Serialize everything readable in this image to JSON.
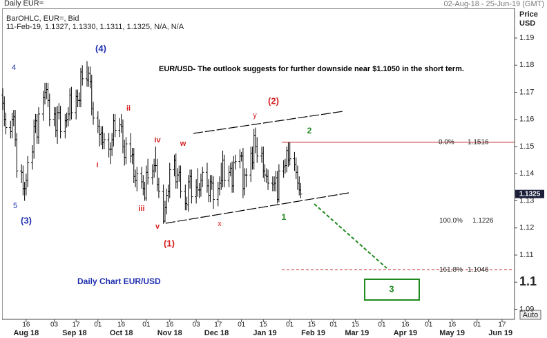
{
  "chart_data": {
    "type": "ohlc",
    "title": "Daily EUR=",
    "date_range": "02-Aug-18 - 25-Jun-19 (GMT)",
    "subtitle": "BarOHLC, EUR=, Bid",
    "info_line": "11-Feb-19, 1.1327, 1.1330, 1.1311, 1.1325, N/A, N/A",
    "ylabel_lines": [
      "Price",
      "USD"
    ],
    "auto_button": "Auto",
    "color": "#000000",
    "xlim": [
      "2018-08-01",
      "2019-06-25"
    ],
    "ylim": [
      1.0863,
      1.2002
    ],
    "yticks": [
      1.19,
      1.18,
      1.17,
      1.16,
      1.15,
      1.14,
      1.13,
      1.12,
      1.11,
      1.1,
      1.09
    ],
    "xticks": [
      {
        "value": "2018-08-16",
        "label": "16"
      },
      {
        "value": "2018-09-03",
        "label": "03"
      },
      {
        "value": "2018-09-17",
        "label": "17"
      },
      {
        "value": "2018-10-01",
        "label": "01"
      },
      {
        "value": "2018-10-16",
        "label": "16"
      },
      {
        "value": "2018-11-01",
        "label": "01"
      },
      {
        "value": "2018-11-16",
        "label": "16"
      },
      {
        "value": "2018-12-03",
        "label": "03"
      },
      {
        "value": "2018-12-17",
        "label": "17"
      },
      {
        "value": "2019-01-01",
        "label": "01"
      },
      {
        "value": "2019-01-15",
        "label": "15"
      },
      {
        "value": "2019-02-01",
        "label": "01"
      },
      {
        "value": "2019-02-15",
        "label": "15"
      },
      {
        "value": "2019-03-01",
        "label": "01"
      },
      {
        "value": "2019-03-15",
        "label": "15"
      },
      {
        "value": "2019-04-01",
        "label": "01"
      },
      {
        "value": "2019-04-16",
        "label": "16"
      },
      {
        "value": "2019-05-01",
        "label": "01"
      },
      {
        "value": "2019-05-16",
        "label": "16"
      },
      {
        "value": "2019-06-01",
        "label": "01"
      },
      {
        "value": "2019-06-17",
        "label": "17"
      }
    ],
    "months": [
      {
        "value": "2018-08-16",
        "label": "Aug 18"
      },
      {
        "value": "2018-09-16",
        "label": "Sep 18"
      },
      {
        "value": "2018-10-16",
        "label": "Oct 18"
      },
      {
        "value": "2018-11-16",
        "label": "Nov 18"
      },
      {
        "value": "2018-12-16",
        "label": "Dec 18"
      },
      {
        "value": "2019-01-16",
        "label": "Jan 19"
      },
      {
        "value": "2019-02-16",
        "label": "Feb 19"
      },
      {
        "value": "2019-03-16",
        "label": "Mar 19"
      },
      {
        "value": "2019-04-16",
        "label": "Apr 19"
      },
      {
        "value": "2019-05-16",
        "label": "May 19"
      },
      {
        "value": "2019-06-16",
        "label": "Jun 19"
      }
    ],
    "x": [
      "2018-08-01",
      "2018-08-02",
      "2018-08-03",
      "2018-08-06",
      "2018-08-07",
      "2018-08-08",
      "2018-08-09",
      "2018-08-10",
      "2018-08-13",
      "2018-08-14",
      "2018-08-15",
      "2018-08-16",
      "2018-08-17",
      "2018-08-20",
      "2018-08-21",
      "2018-08-22",
      "2018-08-23",
      "2018-08-24",
      "2018-08-27",
      "2018-08-28",
      "2018-08-29",
      "2018-08-30",
      "2018-08-31",
      "2018-09-03",
      "2018-09-04",
      "2018-09-05",
      "2018-09-06",
      "2018-09-07",
      "2018-09-10",
      "2018-09-11",
      "2018-09-12",
      "2018-09-13",
      "2018-09-14",
      "2018-09-17",
      "2018-09-18",
      "2018-09-19",
      "2018-09-20",
      "2018-09-21",
      "2018-09-24",
      "2018-09-25",
      "2018-09-26",
      "2018-09-27",
      "2018-09-28",
      "2018-10-01",
      "2018-10-02",
      "2018-10-03",
      "2018-10-04",
      "2018-10-05",
      "2018-10-08",
      "2018-10-09",
      "2018-10-10",
      "2018-10-11",
      "2018-10-12",
      "2018-10-15",
      "2018-10-16",
      "2018-10-17",
      "2018-10-18",
      "2018-10-19",
      "2018-10-22",
      "2018-10-23",
      "2018-10-24",
      "2018-10-25",
      "2018-10-26",
      "2018-10-29",
      "2018-10-30",
      "2018-10-31",
      "2018-11-01",
      "2018-11-02",
      "2018-11-05",
      "2018-11-06",
      "2018-11-07",
      "2018-11-08",
      "2018-11-09",
      "2018-11-12",
      "2018-11-13",
      "2018-11-14",
      "2018-11-15",
      "2018-11-16",
      "2018-11-19",
      "2018-11-20",
      "2018-11-21",
      "2018-11-22",
      "2018-11-23",
      "2018-11-26",
      "2018-11-27",
      "2018-11-28",
      "2018-11-29",
      "2018-11-30",
      "2018-12-03",
      "2018-12-04",
      "2018-12-05",
      "2018-12-06",
      "2018-12-07",
      "2018-12-10",
      "2018-12-11",
      "2018-12-12",
      "2018-12-13",
      "2018-12-14",
      "2018-12-17",
      "2018-12-18",
      "2018-12-19",
      "2018-12-20",
      "2018-12-21",
      "2018-12-24",
      "2018-12-25",
      "2018-12-26",
      "2018-12-27",
      "2018-12-28",
      "2018-12-31",
      "2019-01-01",
      "2019-01-02",
      "2019-01-03",
      "2019-01-04",
      "2019-01-07",
      "2019-01-08",
      "2019-01-09",
      "2019-01-10",
      "2019-01-11",
      "2019-01-14",
      "2019-01-15",
      "2019-01-16",
      "2019-01-17",
      "2019-01-18",
      "2019-01-21",
      "2019-01-22",
      "2019-01-23",
      "2019-01-24",
      "2019-01-25",
      "2019-01-28",
      "2019-01-29",
      "2019-01-30",
      "2019-01-31",
      "2019-02-01",
      "2019-02-04",
      "2019-02-05",
      "2019-02-06",
      "2019-02-07",
      "2019-02-08"
    ],
    "open": [
      1.169,
      1.166,
      1.16,
      1.157,
      1.1555,
      1.16,
      1.161,
      1.1525,
      1.141,
      1.1405,
      1.1345,
      1.1345,
      1.1375,
      1.144,
      1.148,
      1.1575,
      1.1595,
      1.1535,
      1.162,
      1.168,
      1.17,
      1.171,
      1.167,
      1.16,
      1.162,
      1.156,
      1.1625,
      1.1625,
      1.1555,
      1.1595,
      1.16,
      1.162,
      1.169,
      1.1625,
      1.1685,
      1.167,
      1.167,
      1.1775,
      1.175,
      1.1745,
      1.177,
      1.174,
      1.164,
      1.1605,
      1.1575,
      1.1545,
      1.155,
      1.1515,
      1.1525,
      1.149,
      1.149,
      1.1525,
      1.1595,
      1.156,
      1.158,
      1.1575,
      1.15,
      1.146,
      1.151,
      1.1465,
      1.147,
      1.139,
      1.1375,
      1.14,
      1.137,
      1.1345,
      1.131,
      1.1405,
      1.1385,
      1.141,
      1.143,
      1.143,
      1.136,
      1.1335,
      1.1225,
      1.1275,
      1.132,
      1.1335,
      1.1415,
      1.145,
      1.137,
      1.1395,
      1.1405,
      1.1335,
      1.129,
      1.1285,
      1.137,
      1.139,
      1.1315,
      1.135,
      1.134,
      1.134,
      1.1375,
      1.1405,
      1.1355,
      1.132,
      1.137,
      1.1365,
      1.1305,
      1.1345,
      1.1365,
      1.1375,
      1.145,
      1.1375,
      1.1405,
      1.142,
      1.1355,
      1.144,
      1.1445,
      1.1465,
      1.1465,
      1.1345,
      1.1395,
      1.1395,
      1.1475,
      1.144,
      1.154,
      1.15,
      1.1465,
      1.1475,
      1.141,
      1.1395,
      1.139,
      1.1365,
      1.136,
      1.1365,
      1.1385,
      1.1305,
      1.141,
      1.1425,
      1.143,
      1.1485,
      1.145,
      1.1455,
      1.1435,
      1.1405,
      1.1365,
      1.134
    ],
    "high": [
      1.1715,
      1.1685,
      1.1625,
      1.1595,
      1.1625,
      1.1635,
      1.1635,
      1.155,
      1.1435,
      1.143,
      1.137,
      1.14,
      1.1465,
      1.1505,
      1.16,
      1.162,
      1.162,
      1.1645,
      1.1705,
      1.1735,
      1.1735,
      1.1735,
      1.1695,
      1.1645,
      1.1645,
      1.165,
      1.166,
      1.165,
      1.162,
      1.1625,
      1.1645,
      1.1715,
      1.172,
      1.171,
      1.171,
      1.17,
      1.179,
      1.18,
      1.1815,
      1.1795,
      1.1795,
      1.1765,
      1.1665,
      1.163,
      1.16,
      1.1575,
      1.1575,
      1.155,
      1.155,
      1.1515,
      1.155,
      1.162,
      1.162,
      1.1605,
      1.162,
      1.16,
      1.1525,
      1.1535,
      1.155,
      1.1495,
      1.1495,
      1.1415,
      1.1425,
      1.1425,
      1.1395,
      1.137,
      1.143,
      1.1455,
      1.1435,
      1.1455,
      1.15,
      1.1455,
      1.1385,
      1.136,
      1.13,
      1.1345,
      1.136,
      1.144,
      1.147,
      1.1475,
      1.142,
      1.143,
      1.143,
      1.136,
      1.1315,
      1.1395,
      1.1415,
      1.1415,
      1.138,
      1.142,
      1.1365,
      1.14,
      1.1425,
      1.144,
      1.138,
      1.1395,
      1.1395,
      1.139,
      1.137,
      1.139,
      1.144,
      1.1485,
      1.147,
      1.143,
      1.144,
      1.1445,
      1.1465,
      1.147,
      1.149,
      1.148,
      1.1495,
      1.142,
      1.142,
      1.15,
      1.15,
      1.1565,
      1.157,
      1.1535,
      1.15,
      1.15,
      1.1435,
      1.142,
      1.1415,
      1.139,
      1.139,
      1.141,
      1.141,
      1.1435,
      1.145,
      1.1455,
      1.15,
      1.1515,
      1.1516,
      1.148,
      1.146,
      1.143,
      1.139,
      1.1365
    ],
    "low": [
      1.1635,
      1.1575,
      1.1545,
      1.153,
      1.153,
      1.1575,
      1.15,
      1.1385,
      1.1365,
      1.132,
      1.13,
      1.132,
      1.135,
      1.1415,
      1.1455,
      1.155,
      1.151,
      1.151,
      1.1595,
      1.1655,
      1.1675,
      1.1645,
      1.1575,
      1.1575,
      1.1535,
      1.151,
      1.16,
      1.153,
      1.153,
      1.157,
      1.1575,
      1.1595,
      1.16,
      1.16,
      1.1645,
      1.1645,
      1.1645,
      1.1725,
      1.172,
      1.172,
      1.1715,
      1.1615,
      1.158,
      1.155,
      1.15,
      1.1505,
      1.149,
      1.149,
      1.146,
      1.1435,
      1.1465,
      1.15,
      1.1535,
      1.1535,
      1.155,
      1.1475,
      1.143,
      1.1435,
      1.144,
      1.1435,
      1.1365,
      1.135,
      1.1335,
      1.1345,
      1.132,
      1.13,
      1.13,
      1.136,
      1.136,
      1.1385,
      1.1405,
      1.1335,
      1.131,
      1.1215,
      1.122,
      1.125,
      1.1295,
      1.131,
      1.139,
      1.1345,
      1.1345,
      1.137,
      1.131,
      1.1265,
      1.1265,
      1.126,
      1.1345,
      1.129,
      1.129,
      1.1315,
      1.131,
      1.1315,
      1.135,
      1.133,
      1.1295,
      1.1295,
      1.134,
      1.127,
      1.128,
      1.132,
      1.134,
      1.135,
      1.135,
      1.135,
      1.139,
      1.133,
      1.133,
      1.1415,
      1.142,
      1.1445,
      1.131,
      1.132,
      1.135,
      1.137,
      1.1415,
      1.1415,
      1.1475,
      1.144,
      1.144,
      1.1385,
      1.137,
      1.1365,
      1.134,
      1.1335,
      1.1335,
      1.1335,
      1.129,
      1.1295,
      1.1385,
      1.14,
      1.1405,
      1.1425,
      1.143,
      1.141,
      1.138,
      1.134,
      1.132,
      1.131
    ],
    "close": [
      1.166,
      1.16,
      1.157,
      1.1555,
      1.16,
      1.161,
      1.1525,
      1.141,
      1.1405,
      1.1345,
      1.1345,
      1.1375,
      1.144,
      1.148,
      1.1575,
      1.1595,
      1.1535,
      1.162,
      1.168,
      1.17,
      1.171,
      1.167,
      1.16,
      1.162,
      1.156,
      1.1625,
      1.1625,
      1.1555,
      1.1595,
      1.16,
      1.162,
      1.169,
      1.1625,
      1.1685,
      1.167,
      1.167,
      1.1775,
      1.175,
      1.1745,
      1.177,
      1.174,
      1.164,
      1.1605,
      1.1575,
      1.1545,
      1.155,
      1.1515,
      1.1525,
      1.149,
      1.149,
      1.1525,
      1.1595,
      1.156,
      1.158,
      1.1575,
      1.15,
      1.146,
      1.151,
      1.1465,
      1.147,
      1.139,
      1.1375,
      1.14,
      1.137,
      1.1345,
      1.131,
      1.1405,
      1.1385,
      1.141,
      1.143,
      1.143,
      1.136,
      1.1335,
      1.1225,
      1.1275,
      1.132,
      1.1335,
      1.1415,
      1.145,
      1.137,
      1.1395,
      1.1405,
      1.1335,
      1.129,
      1.1285,
      1.137,
      1.139,
      1.1315,
      1.135,
      1.134,
      1.134,
      1.1375,
      1.1405,
      1.1355,
      1.132,
      1.137,
      1.1365,
      1.1305,
      1.1345,
      1.1365,
      1.1375,
      1.145,
      1.1375,
      1.1405,
      1.142,
      1.1355,
      1.144,
      1.1445,
      1.1465,
      1.1465,
      1.1345,
      1.1395,
      1.1395,
      1.1475,
      1.144,
      1.154,
      1.15,
      1.1465,
      1.1475,
      1.141,
      1.1395,
      1.139,
      1.1365,
      1.136,
      1.1365,
      1.1385,
      1.1305,
      1.141,
      1.1425,
      1.143,
      1.1485,
      1.145,
      1.1455,
      1.1435,
      1.1405,
      1.1365,
      1.134,
      1.1325
    ],
    "last_price": 1.1325,
    "fib_levels": [
      {
        "label": "0.0%",
        "price": 1.1516
      },
      {
        "label": "100.0%",
        "price": 1.1226
      },
      {
        "label": "161.8%",
        "price": 1.1046
      }
    ],
    "annotations": [
      {
        "text": "EUR/USD- The outlook suggests for further downside near $1.1050  in the short term.",
        "color": "#000000"
      },
      {
        "text": "Daily Chart EUR/USD",
        "color": "#1f2fb0"
      },
      {
        "text": "(4)",
        "color": "#1f2fb0"
      },
      {
        "text": "4",
        "color": "#1f2fb0"
      },
      {
        "text": "5",
        "color": "#1f2fb0"
      },
      {
        "text": "(3)",
        "color": "#1f2fb0"
      },
      {
        "text": "ii",
        "color": "#d42020"
      },
      {
        "text": "i",
        "color": "#d42020"
      },
      {
        "text": "iii",
        "color": "#d42020"
      },
      {
        "text": "iv",
        "color": "#d42020"
      },
      {
        "text": "w",
        "color": "#d42020"
      },
      {
        "text": "v",
        "color": "#d42020"
      },
      {
        "text": "(1)",
        "color": "#d42020"
      },
      {
        "text": "x",
        "color": "#d42020"
      },
      {
        "text": "y",
        "color": "#d42020"
      },
      {
        "text": "(2)",
        "color": "#d42020"
      },
      {
        "text": "2",
        "color": "#1e8a1e"
      },
      {
        "text": "1",
        "color": "#1e8a1e"
      },
      {
        "text": "3",
        "color": "#1e8a1e"
      }
    ]
  }
}
